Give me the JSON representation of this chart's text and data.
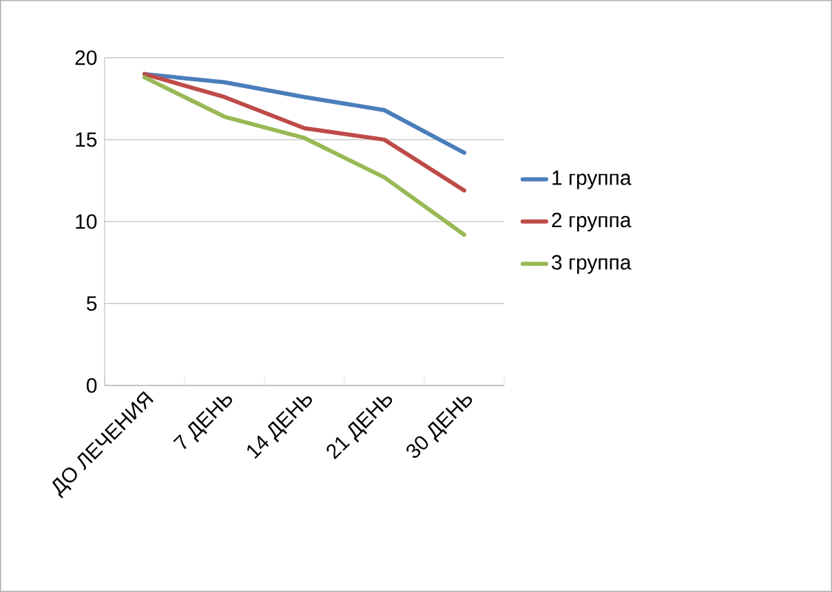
{
  "chart_data": {
    "type": "line",
    "categories": [
      "ДО ЛЕЧЕНИЯ",
      "7 ДЕНЬ",
      "14 ДЕНЬ",
      "21 ДЕНЬ",
      "30 ДЕНЬ"
    ],
    "series": [
      {
        "name": "1 группа",
        "color": "#4a7ebb",
        "values": [
          19,
          18.5,
          17.6,
          16.8,
          14.2
        ]
      },
      {
        "name": "2 группа",
        "color": "#be4b48",
        "values": [
          19,
          17.6,
          15.7,
          15,
          11.9
        ]
      },
      {
        "name": "3 группа",
        "color": "#98b954",
        "values": [
          18.8,
          16.4,
          15.1,
          12.7,
          9.2
        ]
      }
    ],
    "ylim": [
      0,
      20
    ],
    "yticks": [
      0,
      5,
      10,
      15,
      20
    ],
    "grid": "y",
    "legend": "right",
    "marker": "none",
    "line_style": "solid"
  }
}
